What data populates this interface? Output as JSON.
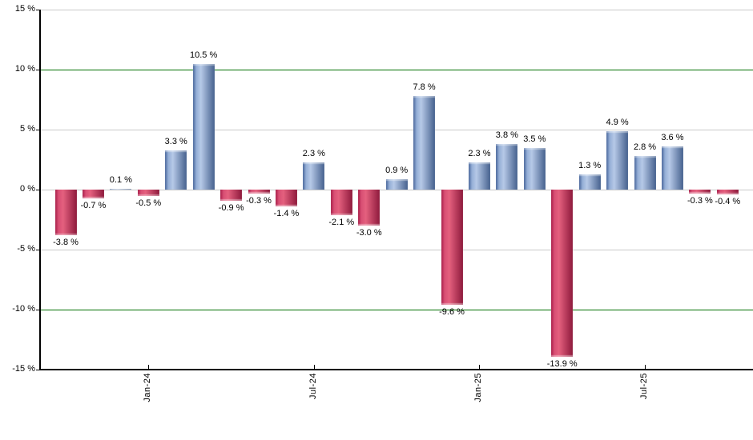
{
  "chart_data": {
    "type": "bar",
    "title": "",
    "xlabel": "",
    "ylabel": "",
    "unit": "%",
    "ylim": [
      -15,
      15
    ],
    "grid": true,
    "legend": null,
    "values": [
      -3.8,
      -0.7,
      0.1,
      -0.5,
      3.3,
      10.5,
      -0.9,
      -0.3,
      -1.4,
      2.3,
      -2.1,
      -3.0,
      0.9,
      7.8,
      -9.6,
      2.3,
      3.8,
      3.5,
      -13.9,
      1.3,
      4.9,
      2.8,
      3.6,
      -0.3,
      -0.4
    ],
    "labels": [
      "-3.8 %",
      "-0.7 %",
      "0.1 %",
      "-0.5 %",
      "3.3 %",
      "10.5 %",
      "-0.9 %",
      "-0.3 %",
      "-1.4 %",
      "2.3 %",
      "-2.1 %",
      "-3.0 %",
      "0.9 %",
      "7.8 %",
      "-9.6 %",
      "2.3 %",
      "3.8 %",
      "3.5 %",
      "-13.9 %",
      "1.3 %",
      "4.9 %",
      "2.8 %",
      "3.6 %",
      "-0.3 %",
      "-0.4 %"
    ],
    "x_ticks": [
      {
        "label": "Jan-24",
        "index": 3
      },
      {
        "label": "Jul-24",
        "index": 9
      },
      {
        "label": "Jan-25",
        "index": 15
      },
      {
        "label": "Jul-25",
        "index": 21
      }
    ],
    "y_ticks": [
      {
        "value": 15,
        "label": "15 %"
      },
      {
        "value": 10,
        "label": "10 %"
      },
      {
        "value": 5,
        "label": "5 %"
      },
      {
        "value": 0,
        "label": "0 %"
      },
      {
        "value": -5,
        "label": "-5 %"
      },
      {
        "value": -10,
        "label": "-10 %"
      },
      {
        "value": -15,
        "label": "-15 %"
      }
    ],
    "threshold_values": [
      10,
      -10
    ],
    "colors": {
      "positive_gradient": [
        "#47659a",
        "#94aed6",
        "#b6c9e7",
        "#46618e"
      ],
      "negative_gradient": [
        "#a81c48",
        "#d84f74",
        "#e4607e",
        "#8e1a3c"
      ],
      "threshold_line": "#007000",
      "gridline": "#c8c8c8",
      "axis_line": "#000000",
      "label_text": "#000000",
      "background": "#ffffff"
    }
  }
}
